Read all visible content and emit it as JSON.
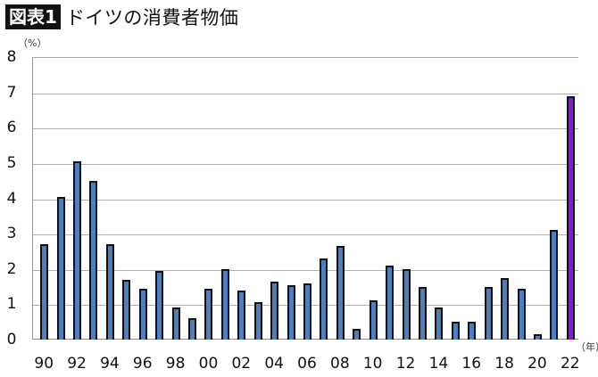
{
  "title": {
    "badge": "図表1",
    "text": "ドイツの消費者物価"
  },
  "axis": {
    "y_unit": "（%）",
    "x_unit": "（年）",
    "y_ticks": [
      "0",
      "1",
      "2",
      "3",
      "4",
      "5",
      "6",
      "7",
      "8"
    ],
    "x_ticks": [
      "90",
      "92",
      "94",
      "96",
      "98",
      "00",
      "02",
      "04",
      "06",
      "08",
      "10",
      "12",
      "14",
      "16",
      "18",
      "20",
      "22"
    ]
  },
  "colors": {
    "bar": "#4f7ec0",
    "highlight": "#8a17d8",
    "grid": "#b0b0b0"
  },
  "chart_data": {
    "type": "bar",
    "title": "ドイツの消費者物価",
    "xlabel": "（年）",
    "ylabel": "（%）",
    "ylim": [
      0,
      8
    ],
    "grid": true,
    "legend": null,
    "categories": [
      "1990",
      "1991",
      "1992",
      "1993",
      "1994",
      "1995",
      "1996",
      "1997",
      "1998",
      "1999",
      "2000",
      "2001",
      "2002",
      "2003",
      "2004",
      "2005",
      "2006",
      "2007",
      "2008",
      "2009",
      "2010",
      "2011",
      "2012",
      "2013",
      "2014",
      "2015",
      "2016",
      "2017",
      "2018",
      "2019",
      "2020",
      "2021",
      "2022"
    ],
    "values": [
      2.7,
      4.05,
      5.05,
      4.5,
      2.7,
      1.7,
      1.45,
      1.95,
      0.9,
      0.6,
      1.45,
      2.0,
      1.4,
      1.05,
      1.65,
      1.55,
      1.6,
      2.3,
      2.65,
      0.3,
      1.1,
      2.1,
      2.0,
      1.5,
      0.9,
      0.5,
      0.5,
      1.5,
      1.75,
      1.45,
      0.15,
      3.1,
      6.9
    ],
    "highlight_index": 32,
    "tick_labels": [
      "90",
      "92",
      "94",
      "96",
      "98",
      "00",
      "02",
      "04",
      "06",
      "08",
      "10",
      "12",
      "14",
      "16",
      "18",
      "20",
      "22"
    ]
  }
}
